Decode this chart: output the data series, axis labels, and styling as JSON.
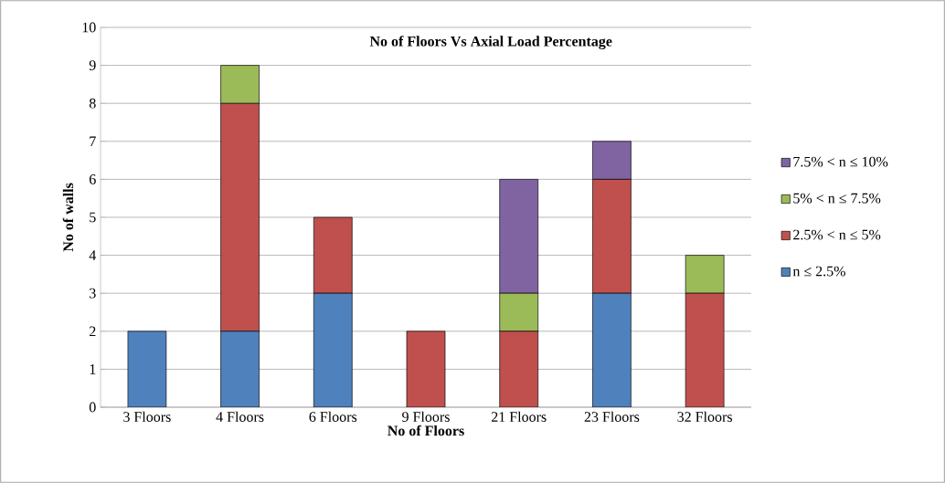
{
  "chart_data": {
    "type": "bar",
    "stacked": true,
    "title": "No of  Floors Vs Axial Load Percentage",
    "xlabel": "No of Floors",
    "ylabel": "No of walls",
    "categories": [
      "3 Floors",
      "4 Floors",
      "6 Floors",
      "9 Floors",
      "21 Floors",
      "23 Floors",
      "32 Floors"
    ],
    "series": [
      {
        "name": "n ≤ 2.5%",
        "color": "#4f81bd",
        "values": [
          2,
          2,
          3,
          0,
          0,
          3,
          0
        ]
      },
      {
        "name": "2.5% < n ≤ 5%",
        "color": "#c0504d",
        "values": [
          0,
          6,
          2,
          2,
          2,
          3,
          3
        ]
      },
      {
        "name": "5% < n ≤ 7.5%",
        "color": "#9bbb59",
        "values": [
          0,
          1,
          0,
          0,
          1,
          0,
          1
        ]
      },
      {
        "name": "7.5% < n ≤ 10%",
        "color": "#8064a2",
        "values": [
          0,
          0,
          0,
          0,
          3,
          1,
          0
        ]
      }
    ],
    "ylim": [
      0,
      10
    ],
    "yticks": [
      0,
      1,
      2,
      3,
      4,
      5,
      6,
      7,
      8,
      9,
      10
    ],
    "grid": "y",
    "legend": "right"
  }
}
